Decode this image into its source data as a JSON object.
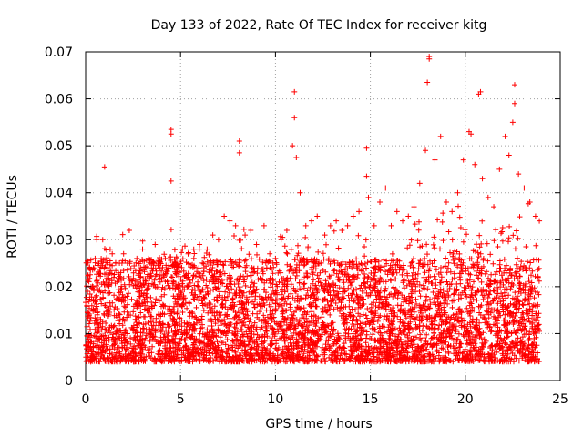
{
  "chart_data": {
    "type": "scatter",
    "title": "Day 133 of 2022, Rate Of TEC Index for receiver kitg",
    "xlabel": "GPS time / hours",
    "ylabel": "ROTI / TECUs",
    "xlim": [
      0,
      25
    ],
    "ylim": [
      0,
      0.07
    ],
    "xticks": [
      "0",
      "5",
      "10",
      "15",
      "20",
      "25"
    ],
    "yticks": [
      "0",
      "0.01",
      "0.02",
      "0.03",
      "0.04",
      "0.05",
      "0.06",
      "0.07"
    ],
    "grid": true,
    "marker": "+",
    "color": "#ff0000",
    "series": [
      {
        "x": [
          0.2,
          0.5,
          0.9,
          1.0,
          1.4,
          1.7,
          2.0,
          2.3,
          2.7,
          3.0,
          3.3,
          3.6,
          3.9,
          4.2,
          4.5,
          4.5,
          4.5,
          4.8,
          5.1,
          5.4,
          5.7,
          6.0,
          6.4,
          6.7,
          7.0,
          7.3,
          7.6,
          7.9,
          8.1,
          8.1,
          8.4,
          8.7,
          9.0,
          9.4,
          9.7,
          10.0,
          10.3,
          10.6,
          10.9,
          11.0,
          11.0,
          11.1,
          11.3,
          11.6,
          11.9,
          12.2,
          12.6,
          12.9,
          13.2,
          13.5,
          13.8,
          14.1,
          14.4,
          14.8,
          14.8,
          14.9,
          15.2,
          15.5,
          15.8,
          16.1,
          16.4,
          16.7,
          17.0,
          17.3,
          17.6,
          17.9,
          18.0,
          18.1,
          18.1,
          18.4,
          18.7,
          19.0,
          19.3,
          19.6,
          19.9,
          20.2,
          20.3,
          20.5,
          20.7,
          20.8,
          20.9,
          21.2,
          21.5,
          21.8,
          22.1,
          22.3,
          22.5,
          22.6,
          22.6,
          22.8,
          23.1,
          23.4,
          23.7,
          23.9
        ],
        "y": [
          0.024,
          0.026,
          0.03,
          0.0455,
          0.027,
          0.025,
          0.027,
          0.032,
          0.026,
          0.028,
          0.026,
          0.025,
          0.024,
          0.026,
          0.0425,
          0.0525,
          0.0535,
          0.026,
          0.028,
          0.027,
          0.026,
          0.029,
          0.028,
          0.031,
          0.03,
          0.035,
          0.034,
          0.033,
          0.0485,
          0.051,
          0.031,
          0.032,
          0.029,
          0.033,
          0.027,
          0.026,
          0.03,
          0.032,
          0.05,
          0.056,
          0.0615,
          0.0475,
          0.04,
          0.033,
          0.034,
          0.035,
          0.031,
          0.033,
          0.034,
          0.032,
          0.033,
          0.035,
          0.036,
          0.0435,
          0.0495,
          0.039,
          0.033,
          0.038,
          0.041,
          0.033,
          0.036,
          0.034,
          0.035,
          0.037,
          0.042,
          0.049,
          0.0635,
          0.0685,
          0.069,
          0.047,
          0.052,
          0.038,
          0.036,
          0.04,
          0.047,
          0.053,
          0.0525,
          0.046,
          0.061,
          0.0615,
          0.043,
          0.039,
          0.037,
          0.045,
          0.052,
          0.048,
          0.055,
          0.059,
          0.063,
          0.044,
          0.041,
          0.038,
          0.035,
          0.034
        ]
      }
    ]
  }
}
